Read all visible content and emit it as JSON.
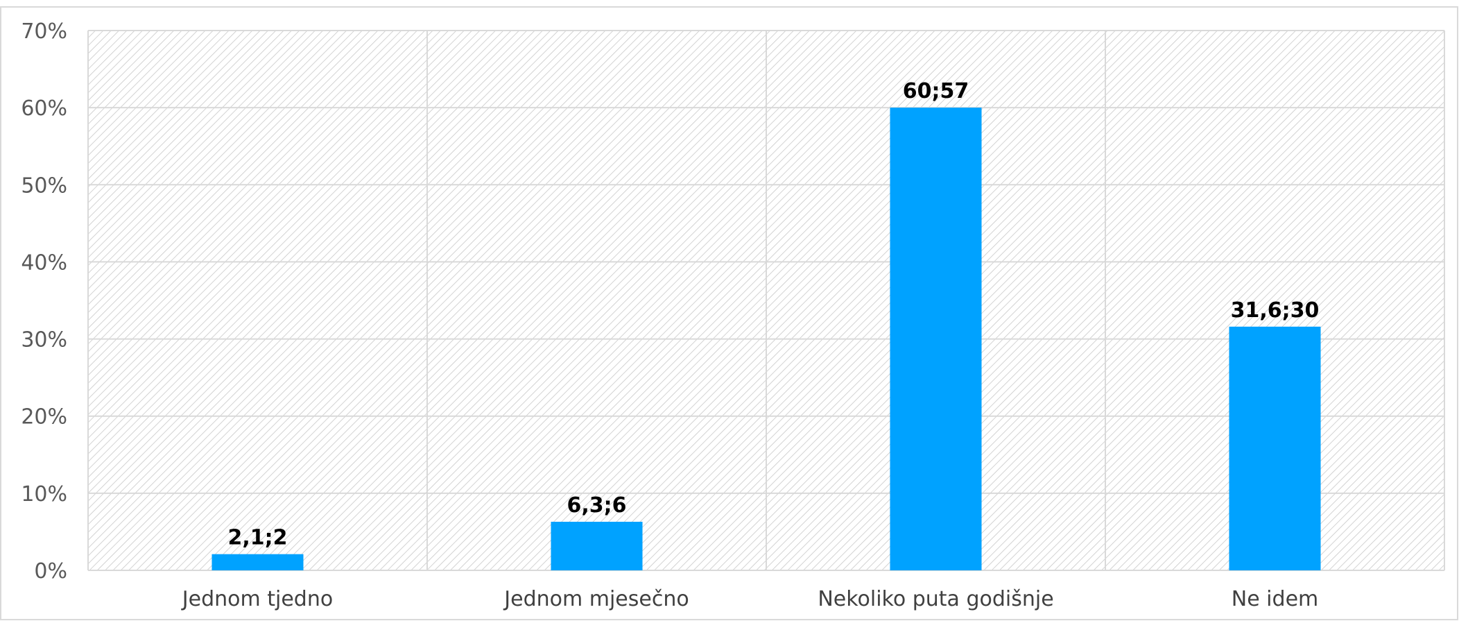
{
  "chart_data": {
    "type": "bar",
    "title": "",
    "xlabel": "",
    "ylabel": "",
    "categories": [
      "Jednom tjedno",
      "Jednom mjesečno",
      "Nekoliko puta godišnje",
      "Ne idem"
    ],
    "values": [
      2.1,
      6.3,
      60,
      31.6
    ],
    "data_labels": [
      "2,1;2",
      "6,3;6",
      "60;57",
      "31,6;30"
    ],
    "ylim": [
      0,
      70
    ],
    "yticks": [
      0,
      10,
      20,
      30,
      40,
      50,
      60,
      70
    ],
    "ytick_labels": [
      "0%",
      "10%",
      "20%",
      "30%",
      "40%",
      "50%",
      "60%",
      "70%"
    ],
    "grid": true,
    "legend": "none",
    "colors": {
      "bar": "#00a2ff",
      "gridline": "#d9d9d9",
      "hatch": "#c8c8c8",
      "border": "#d9d9d9"
    }
  }
}
